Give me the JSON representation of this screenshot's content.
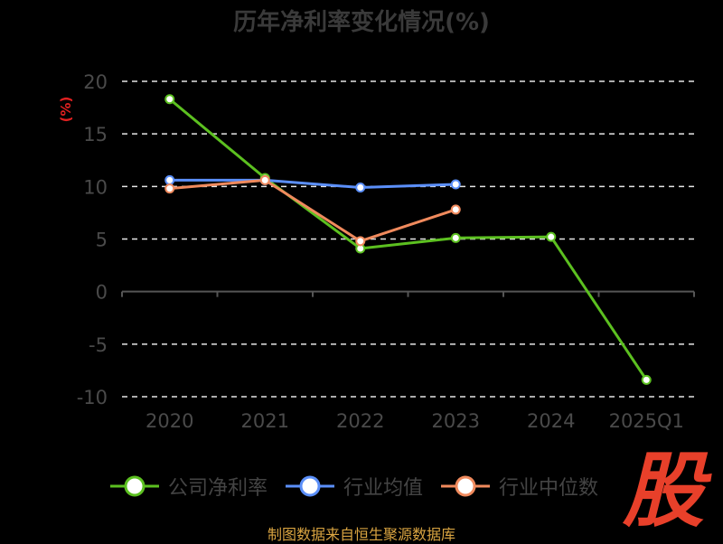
{
  "chart_data": {
    "type": "line",
    "title": "历年净利率变化情况(%)",
    "ylabel": "(%)",
    "categories": [
      "2020",
      "2021",
      "2022",
      "2023",
      "2024",
      "2025Q1"
    ],
    "ylim": [
      -10,
      20
    ],
    "yticks": [
      20,
      15,
      10,
      5,
      0,
      -5,
      -10
    ],
    "grid": true,
    "legend_position": "bottom",
    "series": [
      {
        "name": "公司净利率",
        "color": "#5cc020",
        "values": [
          18.3,
          10.8,
          4.1,
          5.1,
          5.2,
          -8.4
        ]
      },
      {
        "name": "行业均值",
        "color": "#5b8ff9",
        "values": [
          10.6,
          10.6,
          9.9,
          10.2,
          null,
          null
        ]
      },
      {
        "name": "行业中位数",
        "color": "#f08a5d",
        "values": [
          9.8,
          10.6,
          4.8,
          7.8,
          null,
          null
        ]
      }
    ]
  },
  "watermark": "股",
  "source": "制图数据来自恒生聚源数据库"
}
